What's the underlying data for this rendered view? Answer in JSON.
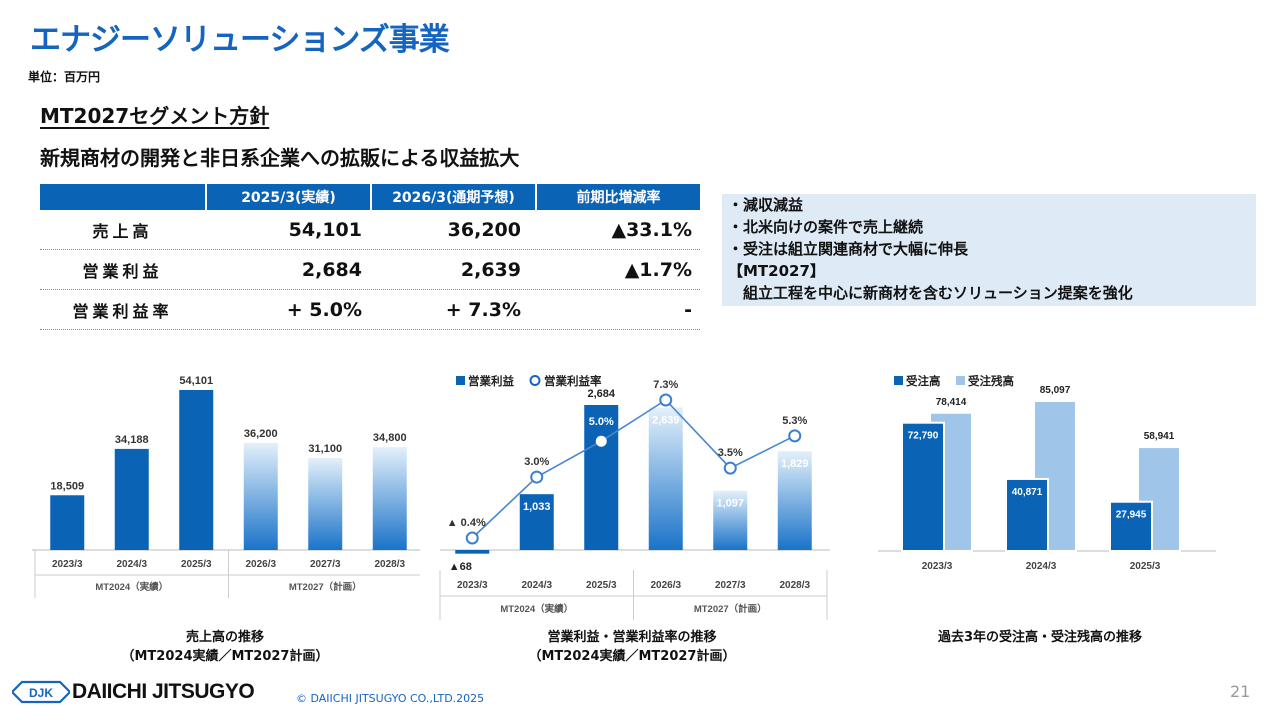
{
  "header": {
    "title": "エナジーソリューションズ事業",
    "unit": "単位：百万円",
    "policy_title": "MT2027セグメント方針",
    "policy_subtitle": "新規商材の開発と非日系企業への拡販による収益拡大"
  },
  "table": {
    "columns": [
      "",
      "2025/3(実績)",
      "2026/3(通期予想)",
      "前期比増減率"
    ],
    "rows": [
      {
        "label": "売上高",
        "actual": "54,101",
        "forecast": "36,200",
        "change": "▲33.1%"
      },
      {
        "label": "営業利益",
        "actual": "2,684",
        "forecast": "2,639",
        "change": "▲1.7%"
      },
      {
        "label": "営業利益率",
        "actual": "+ 5.0%",
        "forecast": "+ 7.3%",
        "change": "-"
      }
    ]
  },
  "notes": [
    "・減収減益",
    "・北米向けの案件で売上継続",
    "・受注は組立関連商材で大幅に伸長",
    "【MT2027】",
    "　組立工程を中心に新商材を含むソリューション提案を強化"
  ],
  "chart_data": [
    {
      "type": "bar",
      "categories": [
        "2023/3",
        "2024/3",
        "2025/3",
        "2026/3",
        "2027/3",
        "2028/3"
      ],
      "values": [
        18509,
        34188,
        54101,
        36200,
        31100,
        34800
      ],
      "value_labels": [
        "18,509",
        "34,188",
        "54,101",
        "36,200",
        "31,100",
        "34,800"
      ],
      "groups": [
        {
          "label": "MT2024（実績）",
          "span": 3
        },
        {
          "label": "MT2027（計画）",
          "span": 3
        }
      ],
      "caption": [
        "売上高の推移",
        "（MT2024実績／MT2027計画）"
      ]
    },
    {
      "type": "bar",
      "categories": [
        "2023/3",
        "2024/3",
        "2025/3",
        "2026/3",
        "2027/3",
        "2028/3"
      ],
      "legend": [
        "営業利益",
        "営業利益率"
      ],
      "series": [
        {
          "name": "営業利益",
          "values": [
            -68,
            1033,
            2684,
            2639,
            1097,
            1829
          ],
          "labels": [
            "▲68",
            "1,033",
            "2,684",
            "2,639",
            "1,097",
            "1,829"
          ]
        },
        {
          "name": "営業利益率",
          "values": [
            -0.4,
            3.0,
            5.0,
            7.3,
            3.5,
            5.3
          ],
          "labels": [
            "▲ 0.4%",
            "3.0%",
            "5.0%",
            "7.3%",
            "3.5%",
            "5.3%"
          ]
        }
      ],
      "groups": [
        {
          "label": "MT2024（実績）",
          "span": 3
        },
        {
          "label": "MT2027（計画）",
          "span": 3
        }
      ],
      "caption": [
        "営業利益・営業利益率の推移",
        "（MT2024実績／MT2027計画）"
      ]
    },
    {
      "type": "bar",
      "categories": [
        "2023/3",
        "2024/3",
        "2025/3"
      ],
      "legend": [
        "受注高",
        "受注残高"
      ],
      "series": [
        {
          "name": "受注高",
          "values": [
            72790,
            40871,
            27945
          ],
          "labels": [
            "72,790",
            "40,871",
            "27,945"
          ]
        },
        {
          "name": "受注残高",
          "values": [
            78414,
            85097,
            58941
          ],
          "labels": [
            "78,414",
            "85,097",
            "58,941"
          ]
        }
      ],
      "caption": [
        "過去3年の受注高・受注残高の推移"
      ]
    }
  ],
  "colors": {
    "accent": "#1565c0",
    "bar_actual": "#0b63b6",
    "bar_plan_top": "#e3f0fb",
    "bar_plan_bottom": "#1a73c8",
    "backlog": "#9fc5e8",
    "note_bg": "#deeaf6"
  },
  "footer": {
    "logo_text": "DJK",
    "company": "DAIICHI JITSUGYO",
    "copyright": "© DAIICHI JITSUGYO CO.,LTD.2025",
    "page_number": "21"
  }
}
